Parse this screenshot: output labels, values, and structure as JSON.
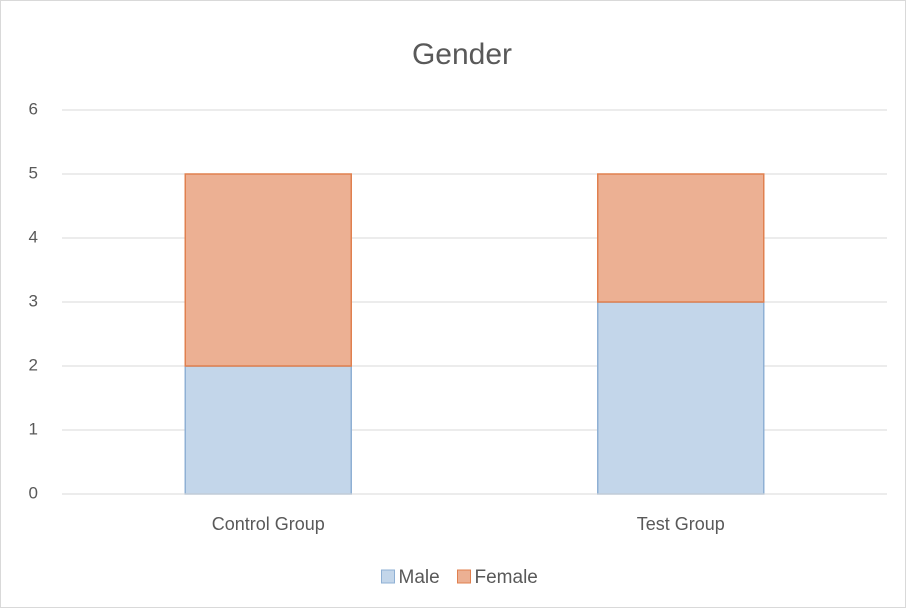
{
  "chart_data": {
    "type": "stacked_bar",
    "title": "Gender",
    "categories": [
      "Control Group",
      "Test Group"
    ],
    "series": [
      {
        "name": "Male",
        "color": "#c3d6ea",
        "values": [
          2,
          3
        ]
      },
      {
        "name": "Female",
        "color": "#ecb093",
        "values": [
          3,
          2
        ]
      }
    ],
    "ylim": [
      0,
      6
    ],
    "yticks": [
      0,
      1,
      2,
      3,
      4,
      5,
      6
    ],
    "grid": true,
    "legend": "bottom"
  }
}
